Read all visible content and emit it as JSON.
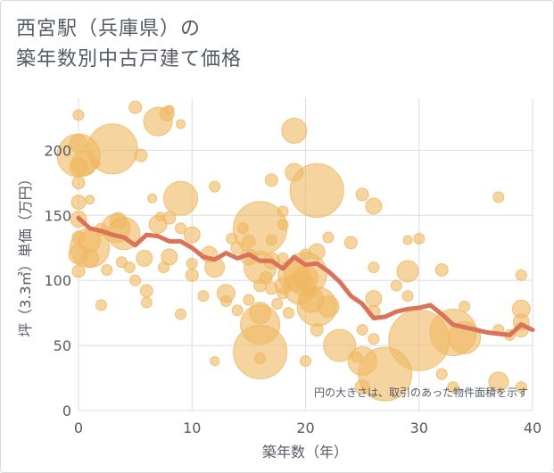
{
  "title_line1": "西宮駅（兵庫県）の",
  "title_line2": "築年数別中古戸建て価格",
  "chart_data": {
    "type": "scatter",
    "xlabel": "築年数（年）",
    "ylabel": "坪（3.3㎡）単価（万円）",
    "xlim": [
      0,
      40
    ],
    "ylim": [
      0,
      240
    ],
    "xticks": [
      0,
      10,
      20,
      30,
      40
    ],
    "yticks": [
      0,
      50,
      100,
      150,
      200
    ],
    "grid": true,
    "note": "円の大きさは、取引のあった物件面積を示す",
    "bubble_color": "#f0b860",
    "line_color": "#d9735a",
    "points": [
      {
        "x": 0,
        "y": 227,
        "s": 6
      },
      {
        "x": 0,
        "y": 205,
        "s": 10
      },
      {
        "x": 0,
        "y": 196,
        "s": 24
      },
      {
        "x": 0,
        "y": 187,
        "s": 10
      },
      {
        "x": 0,
        "y": 175,
        "s": 7
      },
      {
        "x": 0,
        "y": 160,
        "s": 8
      },
      {
        "x": 0,
        "y": 147,
        "s": 9
      },
      {
        "x": 0,
        "y": 133,
        "s": 7
      },
      {
        "x": 0,
        "y": 120,
        "s": 11
      },
      {
        "x": 0,
        "y": 107,
        "s": 7
      },
      {
        "x": 0.5,
        "y": 190,
        "s": 14
      },
      {
        "x": 1,
        "y": 130,
        "s": 12
      },
      {
        "x": 1,
        "y": 125,
        "s": 22
      },
      {
        "x": 1,
        "y": 117,
        "s": 10
      },
      {
        "x": 1,
        "y": 162,
        "s": 5
      },
      {
        "x": 1.5,
        "y": 190,
        "s": 5
      },
      {
        "x": 2,
        "y": 139,
        "s": 7
      },
      {
        "x": 2,
        "y": 81,
        "s": 6
      },
      {
        "x": 2.5,
        "y": 108,
        "s": 6
      },
      {
        "x": 3,
        "y": 201,
        "s": 28
      },
      {
        "x": 3.3,
        "y": 140,
        "s": 16
      },
      {
        "x": 3.5,
        "y": 146,
        "s": 9
      },
      {
        "x": 3.8,
        "y": 114,
        "s": 6
      },
      {
        "x": 4,
        "y": 136,
        "s": 18
      },
      {
        "x": 4.5,
        "y": 110,
        "s": 6
      },
      {
        "x": 5,
        "y": 233,
        "s": 7
      },
      {
        "x": 5,
        "y": 100,
        "s": 6
      },
      {
        "x": 5.5,
        "y": 196,
        "s": 7
      },
      {
        "x": 5.8,
        "y": 117,
        "s": 9
      },
      {
        "x": 6,
        "y": 92,
        "s": 7
      },
      {
        "x": 6,
        "y": 83,
        "s": 6
      },
      {
        "x": 6.5,
        "y": 163,
        "s": 5
      },
      {
        "x": 7,
        "y": 222,
        "s": 16
      },
      {
        "x": 7,
        "y": 143,
        "s": 10
      },
      {
        "x": 7.2,
        "y": 149,
        "s": 5
      },
      {
        "x": 7.5,
        "y": 110,
        "s": 6
      },
      {
        "x": 7.8,
        "y": 228,
        "s": 8
      },
      {
        "x": 8,
        "y": 231,
        "s": 5
      },
      {
        "x": 8,
        "y": 148,
        "s": 7
      },
      {
        "x": 8,
        "y": 118,
        "s": 9
      },
      {
        "x": 9,
        "y": 220,
        "s": 5
      },
      {
        "x": 9,
        "y": 163,
        "s": 19
      },
      {
        "x": 9,
        "y": 140,
        "s": 6
      },
      {
        "x": 9,
        "y": 74,
        "s": 6
      },
      {
        "x": 10,
        "y": 135,
        "s": 9
      },
      {
        "x": 10,
        "y": 113,
        "s": 6
      },
      {
        "x": 10,
        "y": 104,
        "s": 7
      },
      {
        "x": 11,
        "y": 88,
        "s": 6
      },
      {
        "x": 11.5,
        "y": 120,
        "s": 9
      },
      {
        "x": 12,
        "y": 172,
        "s": 6
      },
      {
        "x": 12,
        "y": 110,
        "s": 11
      },
      {
        "x": 12,
        "y": 38,
        "s": 5
      },
      {
        "x": 13,
        "y": 90,
        "s": 10
      },
      {
        "x": 13,
        "y": 84,
        "s": 6
      },
      {
        "x": 13.5,
        "y": 132,
        "s": 6
      },
      {
        "x": 14,
        "y": 125,
        "s": 7
      },
      {
        "x": 14,
        "y": 77,
        "s": 6
      },
      {
        "x": 14.5,
        "y": 140,
        "s": 6
      },
      {
        "x": 15,
        "y": 118,
        "s": 9
      },
      {
        "x": 15,
        "y": 130,
        "s": 7
      },
      {
        "x": 15,
        "y": 85,
        "s": 6
      },
      {
        "x": 16,
        "y": 140,
        "s": 30
      },
      {
        "x": 16,
        "y": 110,
        "s": 18
      },
      {
        "x": 16,
        "y": 96,
        "s": 7
      },
      {
        "x": 16,
        "y": 75,
        "s": 12
      },
      {
        "x": 16,
        "y": 66,
        "s": 22
      },
      {
        "x": 16,
        "y": 45,
        "s": 30
      },
      {
        "x": 16,
        "y": 40,
        "s": 6
      },
      {
        "x": 16.5,
        "y": 102,
        "s": 7
      },
      {
        "x": 17,
        "y": 177,
        "s": 7
      },
      {
        "x": 17,
        "y": 131,
        "s": 6
      },
      {
        "x": 17,
        "y": 115,
        "s": 9
      },
      {
        "x": 17,
        "y": 94,
        "s": 7
      },
      {
        "x": 17.5,
        "y": 82,
        "s": 6
      },
      {
        "x": 18,
        "y": 153,
        "s": 6
      },
      {
        "x": 18,
        "y": 143,
        "s": 6
      },
      {
        "x": 18,
        "y": 117,
        "s": 6
      },
      {
        "x": 18,
        "y": 96,
        "s": 9
      },
      {
        "x": 18,
        "y": 90,
        "s": 6
      },
      {
        "x": 18.5,
        "y": 75,
        "s": 6
      },
      {
        "x": 19,
        "y": 215,
        "s": 14
      },
      {
        "x": 19,
        "y": 183,
        "s": 10
      },
      {
        "x": 19,
        "y": 104,
        "s": 18
      },
      {
        "x": 19.5,
        "y": 94,
        "s": 18
      },
      {
        "x": 20,
        "y": 120,
        "s": 6
      },
      {
        "x": 20,
        "y": 105,
        "s": 24
      },
      {
        "x": 20,
        "y": 102,
        "s": 14
      },
      {
        "x": 20,
        "y": 38,
        "s": 6
      },
      {
        "x": 20.5,
        "y": 85,
        "s": 14
      },
      {
        "x": 21,
        "y": 169,
        "s": 30
      },
      {
        "x": 21,
        "y": 122,
        "s": 9
      },
      {
        "x": 21,
        "y": 80,
        "s": 22
      },
      {
        "x": 21,
        "y": 62,
        "s": 7
      },
      {
        "x": 22,
        "y": 133,
        "s": 6
      },
      {
        "x": 22,
        "y": 80,
        "s": 12
      },
      {
        "x": 23,
        "y": 50,
        "s": 18
      },
      {
        "x": 24,
        "y": 129,
        "s": 7
      },
      {
        "x": 24.5,
        "y": 41,
        "s": 6
      },
      {
        "x": 25,
        "y": 166,
        "s": 7
      },
      {
        "x": 25,
        "y": 62,
        "s": 6
      },
      {
        "x": 25,
        "y": 38,
        "s": 16
      },
      {
        "x": 25,
        "y": 18,
        "s": 8
      },
      {
        "x": 26,
        "y": 157,
        "s": 9
      },
      {
        "x": 26,
        "y": 110,
        "s": 6
      },
      {
        "x": 26,
        "y": 86,
        "s": 9
      },
      {
        "x": 26,
        "y": 76,
        "s": 7
      },
      {
        "x": 26,
        "y": 55,
        "s": 6
      },
      {
        "x": 27,
        "y": 28,
        "s": 30
      },
      {
        "x": 28,
        "y": 96,
        "s": 6
      },
      {
        "x": 29,
        "y": 107,
        "s": 12
      },
      {
        "x": 29,
        "y": 131,
        "s": 5
      },
      {
        "x": 29,
        "y": 88,
        "s": 6
      },
      {
        "x": 30,
        "y": 132,
        "s": 6
      },
      {
        "x": 30,
        "y": 54,
        "s": 34
      },
      {
        "x": 32,
        "y": 108,
        "s": 7
      },
      {
        "x": 32,
        "y": 28,
        "s": 6
      },
      {
        "x": 33,
        "y": 18,
        "s": 6
      },
      {
        "x": 33,
        "y": 60,
        "s": 26
      },
      {
        "x": 34,
        "y": 80,
        "s": 6
      },
      {
        "x": 34,
        "y": 56,
        "s": 18
      },
      {
        "x": 37,
        "y": 164,
        "s": 6
      },
      {
        "x": 37,
        "y": 62,
        "s": 6
      },
      {
        "x": 37,
        "y": 22,
        "s": 11
      },
      {
        "x": 38,
        "y": 58,
        "s": 6
      },
      {
        "x": 39,
        "y": 104,
        "s": 6
      },
      {
        "x": 39,
        "y": 78,
        "s": 10
      },
      {
        "x": 39,
        "y": 68,
        "s": 9
      },
      {
        "x": 39,
        "y": 62,
        "s": 8
      },
      {
        "x": 39,
        "y": 18,
        "s": 6
      }
    ],
    "trend": [
      [
        0,
        148
      ],
      [
        1,
        140
      ],
      [
        2,
        138
      ],
      [
        3,
        135
      ],
      [
        4,
        133
      ],
      [
        5,
        127
      ],
      [
        6,
        135
      ],
      [
        7,
        134
      ],
      [
        8,
        130
      ],
      [
        9,
        130
      ],
      [
        10,
        125
      ],
      [
        11,
        118
      ],
      [
        12,
        116
      ],
      [
        13,
        121
      ],
      [
        14,
        117
      ],
      [
        15,
        120
      ],
      [
        16,
        115
      ],
      [
        17,
        115
      ],
      [
        18,
        109
      ],
      [
        19,
        118
      ],
      [
        20,
        112
      ],
      [
        21,
        113
      ],
      [
        22,
        107
      ],
      [
        23,
        99
      ],
      [
        24,
        88
      ],
      [
        25,
        82
      ],
      [
        26,
        71
      ],
      [
        27,
        72
      ],
      [
        28,
        76
      ],
      [
        29,
        78
      ],
      [
        30,
        79
      ],
      [
        31,
        81
      ],
      [
        32,
        74
      ],
      [
        33,
        66
      ],
      [
        34,
        64
      ],
      [
        35,
        62
      ],
      [
        36,
        60
      ],
      [
        37,
        59
      ],
      [
        38,
        58
      ],
      [
        39,
        66
      ],
      [
        40,
        62
      ]
    ]
  }
}
